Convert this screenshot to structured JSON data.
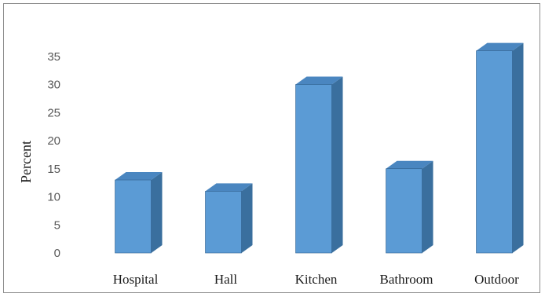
{
  "chart_data": {
    "type": "bar",
    "style": "3d-column",
    "title": "",
    "xlabel": "",
    "ylabel": "Percent",
    "categories": [
      "Hospital",
      "Hall",
      "Kitchen",
      "Bathroom",
      "Outdoor"
    ],
    "values": [
      13,
      11,
      30,
      15,
      36
    ],
    "ylim": [
      0,
      35
    ],
    "yticks": [
      0,
      5,
      10,
      15,
      20,
      25,
      30,
      35
    ],
    "grid": false,
    "legend": "none",
    "colors": {
      "bar_front": "#5b9bd5",
      "bar_side": "#3a6f9e",
      "bar_top": "#4a86c0",
      "bar_edge": "#2f5f8c"
    }
  }
}
